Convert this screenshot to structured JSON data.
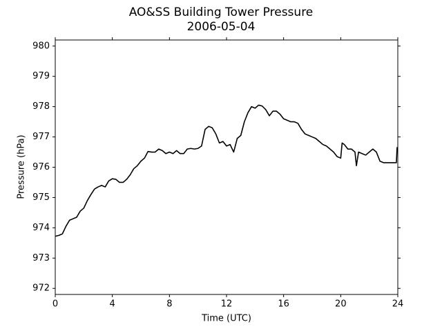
{
  "chart_data": {
    "type": "line",
    "title": "AO&SS Building Tower Pressure",
    "subtitle": "2006-05-04",
    "x_label": "Time (UTC)",
    "y_label": "Pressure (hPa)",
    "x": [
      0,
      0.25,
      0.5,
      0.75,
      1,
      1.25,
      1.5,
      1.75,
      2,
      2.25,
      2.5,
      2.75,
      3,
      3.25,
      3.5,
      3.75,
      4,
      4.25,
      4.5,
      4.75,
      5,
      5.25,
      5.5,
      5.75,
      6,
      6.25,
      6.5,
      6.75,
      7,
      7.25,
      7.5,
      7.75,
      8,
      8.25,
      8.5,
      8.75,
      9,
      9.25,
      9.5,
      9.75,
      10,
      10.25,
      10.5,
      10.75,
      11,
      11.25,
      11.5,
      11.75,
      12,
      12.25,
      12.5,
      12.75,
      13,
      13.25,
      13.5,
      13.75,
      14,
      14.25,
      14.5,
      14.75,
      15,
      15.25,
      15.5,
      15.75,
      16,
      16.25,
      16.5,
      16.75,
      17,
      17.25,
      17.5,
      17.75,
      18,
      18.25,
      18.5,
      18.75,
      19,
      19.25,
      19.5,
      19.75,
      20,
      20.1,
      20.25,
      20.5,
      20.75,
      21,
      21.1,
      21.25,
      21.5,
      21.75,
      22,
      22.25,
      22.5,
      22.75,
      23,
      23.25,
      23.5,
      23.75,
      23.9,
      23.95,
      24
    ],
    "series": [
      {
        "name": "Pressure",
        "color": "#000000",
        "values": [
          973.72,
          973.75,
          973.8,
          974.05,
          974.25,
          974.3,
          974.35,
          974.55,
          974.65,
          974.9,
          975.1,
          975.28,
          975.35,
          975.4,
          975.35,
          975.55,
          975.62,
          975.6,
          975.5,
          975.5,
          975.6,
          975.75,
          975.95,
          976.05,
          976.2,
          976.3,
          976.52,
          976.5,
          976.5,
          976.6,
          976.55,
          976.45,
          976.5,
          976.45,
          976.55,
          976.45,
          976.45,
          976.6,
          976.62,
          976.6,
          976.62,
          976.7,
          977.25,
          977.35,
          977.3,
          977.1,
          976.8,
          976.85,
          976.7,
          976.75,
          976.5,
          976.95,
          977.05,
          977.5,
          977.8,
          978.0,
          977.95,
          978.05,
          978.02,
          977.9,
          977.7,
          977.85,
          977.85,
          977.75,
          977.6,
          977.55,
          977.5,
          977.5,
          977.45,
          977.25,
          977.1,
          977.05,
          977.0,
          976.95,
          976.85,
          976.75,
          976.7,
          976.6,
          976.5,
          976.35,
          976.3,
          976.8,
          976.75,
          976.6,
          976.6,
          976.5,
          976.05,
          976.5,
          976.45,
          976.4,
          976.5,
          976.6,
          976.5,
          976.2,
          976.15,
          976.15,
          976.15,
          976.15,
          976.15,
          976.65,
          976.62
        ]
      }
    ],
    "xlim": [
      0,
      24
    ],
    "xticks": [
      0,
      4,
      8,
      12,
      16,
      20,
      24
    ],
    "ylim": [
      971.8,
      980.2
    ],
    "yticks": [
      972,
      973,
      974,
      975,
      976,
      977,
      978,
      979,
      980
    ],
    "grid": false
  }
}
